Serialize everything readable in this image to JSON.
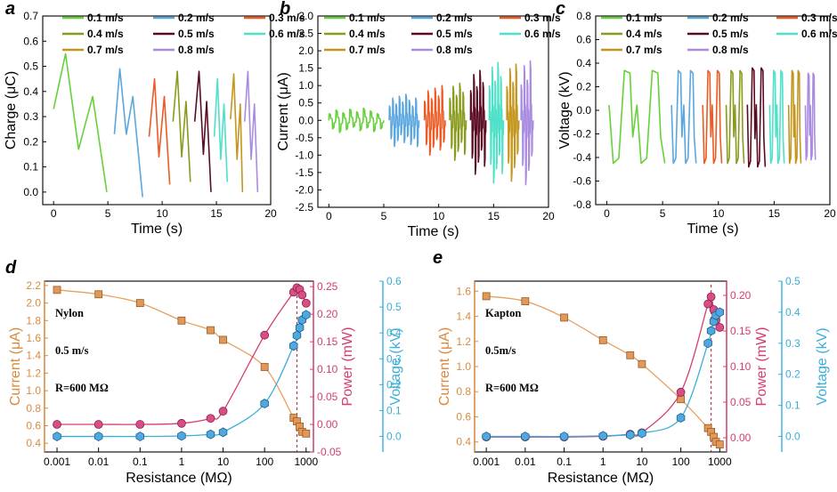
{
  "chart_data": [
    {
      "panel": "a",
      "type": "line",
      "xlabel": "Time (s)",
      "ylabel": "Charge (μC)",
      "xlim": [
        -1,
        20
      ],
      "ylim": [
        -0.05,
        0.7
      ],
      "xticks": [
        0,
        5,
        10,
        15,
        20
      ],
      "yticks": [
        0.0,
        0.1,
        0.2,
        0.3,
        0.4,
        0.5,
        0.6,
        0.7
      ],
      "xtick_labels": [
        "0",
        "5",
        "10",
        "15",
        "20"
      ],
      "ytick_labels": [
        "0.0",
        "0.1",
        "0.2",
        "0.3",
        "0.4",
        "0.5",
        "0.6",
        "0.7"
      ],
      "legend_location": "top",
      "legend_cols": 3,
      "series": [
        {
          "name": "0.1 m/s",
          "color": "#66d13a",
          "points": [
            [
              0,
              0.33
            ],
            [
              1.1,
              0.55
            ],
            [
              2.3,
              0.17
            ],
            [
              3.6,
              0.38
            ],
            [
              4.9,
              0.0
            ]
          ]
        },
        {
          "name": "0.2 m/s",
          "color": "#5aa6de",
          "points": [
            [
              5.6,
              0.23
            ],
            [
              6.1,
              0.49
            ],
            [
              6.7,
              0.23
            ],
            [
              7.3,
              0.38
            ],
            [
              8.2,
              -0.02
            ]
          ]
        },
        {
          "name": "0.3 m/s",
          "color": "#ee5a24",
          "points": [
            [
              8.8,
              0.22
            ],
            [
              9.3,
              0.45
            ],
            [
              9.7,
              0.14
            ],
            [
              10.2,
              0.38
            ],
            [
              10.7,
              0.03
            ]
          ]
        },
        {
          "name": "0.4 m/s",
          "color": "#8a9a1e",
          "points": [
            [
              11.0,
              0.28
            ],
            [
              11.4,
              0.48
            ],
            [
              11.8,
              0.14
            ],
            [
              12.2,
              0.36
            ],
            [
              12.6,
              0.04
            ]
          ]
        },
        {
          "name": "0.5 m/s",
          "color": "#5a0d22",
          "points": [
            [
              13.0,
              0.28
            ],
            [
              13.4,
              0.48
            ],
            [
              13.8,
              0.15
            ],
            [
              14.1,
              0.36
            ],
            [
              14.5,
              0.0
            ]
          ]
        },
        {
          "name": "0.6 m/s",
          "color": "#4fe0c8",
          "points": [
            [
              14.8,
              0.22
            ],
            [
              15.1,
              0.45
            ],
            [
              15.4,
              0.13
            ],
            [
              15.7,
              0.35
            ],
            [
              16.0,
              0.04
            ]
          ]
        },
        {
          "name": "0.7 m/s",
          "color": "#c4961e",
          "points": [
            [
              16.3,
              0.29
            ],
            [
              16.6,
              0.47
            ],
            [
              16.9,
              0.13
            ],
            [
              17.2,
              0.35
            ],
            [
              17.4,
              0.0
            ]
          ]
        },
        {
          "name": "0.8 m/s",
          "color": "#a98ce0",
          "points": [
            [
              17.6,
              0.28
            ],
            [
              17.9,
              0.48
            ],
            [
              18.2,
              0.13
            ],
            [
              18.5,
              0.35
            ],
            [
              18.8,
              0.0
            ]
          ]
        }
      ]
    },
    {
      "panel": "b",
      "type": "line",
      "xlabel": "Time (s)",
      "ylabel": "Current (μA)",
      "xlim": [
        -1,
        20
      ],
      "ylim": [
        -2.5,
        3.0
      ],
      "xticks": [
        0,
        5,
        10,
        15,
        20
      ],
      "yticks": [
        -2.5,
        -2.0,
        -1.5,
        -1.0,
        -0.5,
        0.0,
        0.5,
        1.0,
        1.5,
        2.0,
        2.5,
        3.0
      ],
      "xtick_labels": [
        "0",
        "5",
        "10",
        "15",
        "20"
      ],
      "ytick_labels": [
        "-2.5",
        "-2.0",
        "-1.5",
        "-1.0",
        "-0.5",
        "0.0",
        "0.5",
        "1.0",
        "1.5",
        "2.0",
        "2.5",
        "3.0"
      ],
      "legend_location": "top",
      "legend_cols": 3,
      "series": [
        {
          "name": "0.1 m/s",
          "color": "#66d13a",
          "x_start": 0.0,
          "x_end": 5.0,
          "amplitude": 0.35,
          "cycles": 8
        },
        {
          "name": "0.2 m/s",
          "color": "#5aa6de",
          "x_start": 5.5,
          "x_end": 8.2,
          "amplitude": 0.75,
          "cycles": 9
        },
        {
          "name": "0.3 m/s",
          "color": "#ee5a24",
          "x_start": 8.7,
          "x_end": 10.6,
          "amplitude": 1.0,
          "cycles": 6
        },
        {
          "name": "0.4 m/s",
          "color": "#8a9a1e",
          "x_start": 11.0,
          "x_end": 12.5,
          "amplitude": 1.15,
          "cycles": 5
        },
        {
          "name": "0.5 m/s",
          "color": "#5a0d22",
          "x_start": 12.9,
          "x_end": 14.3,
          "amplitude": 1.55,
          "cycles": 5
        },
        {
          "name": "0.6 m/s",
          "color": "#4fe0c8",
          "x_start": 14.6,
          "x_end": 15.9,
          "amplitude": 1.8,
          "cycles": 5
        },
        {
          "name": "0.7 m/s",
          "color": "#c4961e",
          "x_start": 16.2,
          "x_end": 17.3,
          "amplitude": 1.75,
          "cycles": 4
        },
        {
          "name": "0.8 m/s",
          "color": "#a98ce0",
          "x_start": 17.5,
          "x_end": 18.6,
          "amplitude": 1.85,
          "cycles": 4
        }
      ]
    },
    {
      "panel": "c",
      "type": "line",
      "xlabel": "Time (s)",
      "ylabel": "Voltage (kV)",
      "xlim": [
        -1,
        20
      ],
      "ylim": [
        -0.8,
        0.8
      ],
      "xticks": [
        0,
        5,
        10,
        15,
        20
      ],
      "yticks": [
        -0.8,
        -0.6,
        -0.4,
        -0.2,
        0.0,
        0.2,
        0.4,
        0.6,
        0.8
      ],
      "xtick_labels": [
        "0",
        "5",
        "10",
        "15",
        "20"
      ],
      "ytick_labels": [
        "-0.8",
        "-0.6",
        "-0.4",
        "-0.2",
        "0.0",
        "0.2",
        "0.4",
        "0.6",
        "0.8"
      ],
      "legend_location": "top",
      "legend_cols": 3,
      "series": [
        {
          "name": "0.1 m/s",
          "color": "#66d13a",
          "x_start": 0.2,
          "x_end": 5.2,
          "amplitude": 0.45,
          "cycles": 2
        },
        {
          "name": "0.2 m/s",
          "color": "#5aa6de",
          "x_start": 5.8,
          "x_end": 8.0,
          "amplitude": 0.45,
          "cycles": 2
        },
        {
          "name": "0.3 m/s",
          "color": "#ee5a24",
          "x_start": 8.6,
          "x_end": 10.3,
          "amplitude": 0.45,
          "cycles": 2
        },
        {
          "name": "0.4 m/s",
          "color": "#8a9a1e",
          "x_start": 10.7,
          "x_end": 12.3,
          "amplitude": 0.45,
          "cycles": 2
        },
        {
          "name": "0.5 m/s",
          "color": "#5a0d22",
          "x_start": 12.6,
          "x_end": 14.2,
          "amplitude": 0.48,
          "cycles": 2
        },
        {
          "name": "0.6 m/s",
          "color": "#4fe0c8",
          "x_start": 14.6,
          "x_end": 15.9,
          "amplitude": 0.45,
          "cycles": 2
        },
        {
          "name": "0.7 m/s",
          "color": "#c4961e",
          "x_start": 16.3,
          "x_end": 17.4,
          "amplitude": 0.45,
          "cycles": 2
        },
        {
          "name": "0.8 m/s",
          "color": "#a98ce0",
          "x_start": 17.8,
          "x_end": 18.7,
          "amplitude": 0.42,
          "cycles": 2
        }
      ]
    },
    {
      "panel": "d",
      "type": "scatter",
      "xlabel": "Resistance (MΩ)",
      "xscale": "log",
      "xlim": [
        0.0005,
        1500
      ],
      "xticks": [
        0.001,
        0.01,
        0.1,
        1,
        10,
        100,
        1000
      ],
      "xtick_labels": [
        "0.001",
        "0.01",
        "0.1",
        "1",
        "10",
        "100",
        "1000"
      ],
      "annotations": [
        "Nylon",
        "0.5 m/s",
        "R=600 MΩ"
      ],
      "optimal_resistance": 600,
      "axes": [
        {
          "ylabel": "Current (μA)",
          "color": "#d98a3d",
          "ylim": [
            0.3,
            2.25
          ],
          "yticks": [
            0.4,
            0.6,
            0.8,
            1.0,
            1.2,
            1.4,
            1.6,
            1.8,
            2.0,
            2.2
          ],
          "ytick_labels": [
            "0.4",
            "0.6",
            "0.8",
            "1.0",
            "1.2",
            "1.4",
            "1.6",
            "1.8",
            "2.0",
            "2.2"
          ]
        },
        {
          "ylabel": "Power (mW)",
          "color": "#d63c6e",
          "ylim": [
            -0.05,
            0.26
          ],
          "yticks": [
            -0.05,
            0.0,
            0.05,
            0.1,
            0.15,
            0.2,
            0.25
          ],
          "ytick_labels": [
            "-0.05",
            "0.00",
            "0.05",
            "0.10",
            "0.15",
            "0.20",
            "0.25"
          ]
        },
        {
          "ylabel": "Voltage (kV)",
          "color": "#3aaed8",
          "ylim": [
            -0.06,
            0.6
          ],
          "yticks": [
            0.0,
            0.1,
            0.2,
            0.3,
            0.4,
            0.5,
            0.6
          ],
          "ytick_labels": [
            "0.0",
            "0.1",
            "0.2",
            "0.3",
            "0.4",
            "0.5",
            "0.6"
          ]
        }
      ],
      "series": [
        {
          "name": "Current",
          "axis": 0,
          "marker": "square",
          "fill": "#e0995a",
          "edge": "#9a5a20",
          "line": "#e6a060",
          "x": [
            0.001,
            0.01,
            0.1,
            1,
            5,
            10,
            100,
            500,
            600,
            700,
            800,
            1000
          ],
          "y": [
            2.15,
            2.1,
            2.0,
            1.8,
            1.69,
            1.58,
            1.27,
            0.69,
            0.65,
            0.59,
            0.53,
            0.51
          ]
        },
        {
          "name": "Power",
          "axis": 1,
          "marker": "circle",
          "fill": "#d94f85",
          "edge": "#8a1f4a",
          "line": "#d63c6e",
          "x": [
            0.001,
            0.01,
            0.1,
            1,
            5,
            10,
            100,
            500,
            600,
            700,
            800,
            1000
          ],
          "y": [
            0.0,
            0.0,
            0.0,
            0.002,
            0.011,
            0.024,
            0.162,
            0.24,
            0.248,
            0.245,
            0.235,
            0.22
          ]
        },
        {
          "name": "Voltage",
          "axis": 2,
          "marker": "hexagon",
          "fill": "#4fa9e0",
          "edge": "#1e5e8a",
          "line": "#3aaed8",
          "x": [
            0.001,
            0.01,
            0.1,
            1,
            5,
            10,
            100,
            500,
            600,
            700,
            800,
            1000
          ],
          "y": [
            0.0,
            0.0,
            0.0,
            0.002,
            0.008,
            0.016,
            0.127,
            0.35,
            0.39,
            0.42,
            0.45,
            0.47
          ]
        }
      ]
    },
    {
      "panel": "e",
      "type": "scatter",
      "xlabel": "Resistance (MΩ)",
      "xscale": "log",
      "xlim": [
        0.0005,
        1500
      ],
      "xticks": [
        0.001,
        0.01,
        0.1,
        1,
        10,
        100,
        1000
      ],
      "xtick_labels": [
        "0.001",
        "0.01",
        "0.1",
        "1",
        "10",
        "100",
        "1000"
      ],
      "annotations": [
        "Kapton",
        "0.5m/s",
        "R=600 MΩ"
      ],
      "optimal_resistance": 600,
      "axes": [
        {
          "ylabel": "Current (μA)",
          "color": "#d98a3d",
          "ylim": [
            0.32,
            1.68
          ],
          "yticks": [
            0.4,
            0.6,
            0.8,
            1.0,
            1.2,
            1.4,
            1.6
          ],
          "ytick_labels": [
            "0.4",
            "0.6",
            "0.8",
            "1.0",
            "1.2",
            "1.4",
            "1.6"
          ]
        },
        {
          "ylabel": "Power (mW)",
          "color": "#d63c6e",
          "ylim": [
            -0.02,
            0.22
          ],
          "yticks": [
            0.0,
            0.05,
            0.1,
            0.15,
            0.2
          ],
          "ytick_labels": [
            "0.00",
            "0.05",
            "0.10",
            "0.15",
            "0.20"
          ]
        },
        {
          "ylabel": "Voltage (kV)",
          "color": "#3aaed8",
          "ylim": [
            -0.05,
            0.5
          ],
          "yticks": [
            0.0,
            0.1,
            0.2,
            0.3,
            0.4,
            0.5
          ],
          "ytick_labels": [
            "0.0",
            "0.1",
            "0.2",
            "0.3",
            "0.4",
            "0.5"
          ]
        }
      ],
      "series": [
        {
          "name": "Current",
          "axis": 0,
          "marker": "square",
          "fill": "#e0995a",
          "edge": "#9a5a20",
          "line": "#e6a060",
          "x": [
            0.001,
            0.01,
            0.1,
            1,
            5,
            10,
            100,
            500,
            600,
            700,
            800,
            1000
          ],
          "y": [
            1.56,
            1.52,
            1.39,
            1.21,
            1.09,
            1.02,
            0.74,
            0.51,
            0.48,
            0.44,
            0.4,
            0.38
          ]
        },
        {
          "name": "Power",
          "axis": 1,
          "marker": "circle",
          "fill": "#d94f85",
          "edge": "#8a1f4a",
          "line": "#d63c6e",
          "x": [
            0.001,
            0.01,
            0.1,
            1,
            5,
            10,
            100,
            500,
            600,
            700,
            800,
            1000
          ],
          "y": [
            0.001,
            0.001,
            0.001,
            0.002,
            0.005,
            0.007,
            0.064,
            0.188,
            0.198,
            0.18,
            0.165,
            0.155
          ]
        },
        {
          "name": "Voltage",
          "axis": 2,
          "marker": "hexagon",
          "fill": "#4fa9e0",
          "edge": "#1e5e8a",
          "line": "#3aaed8",
          "x": [
            0.001,
            0.01,
            0.1,
            1,
            5,
            10,
            100,
            500,
            600,
            700,
            800,
            1000
          ],
          "y": [
            0.0,
            0.0,
            0.0,
            0.002,
            0.005,
            0.01,
            0.06,
            0.3,
            0.34,
            0.37,
            0.39,
            0.4
          ]
        }
      ]
    }
  ]
}
